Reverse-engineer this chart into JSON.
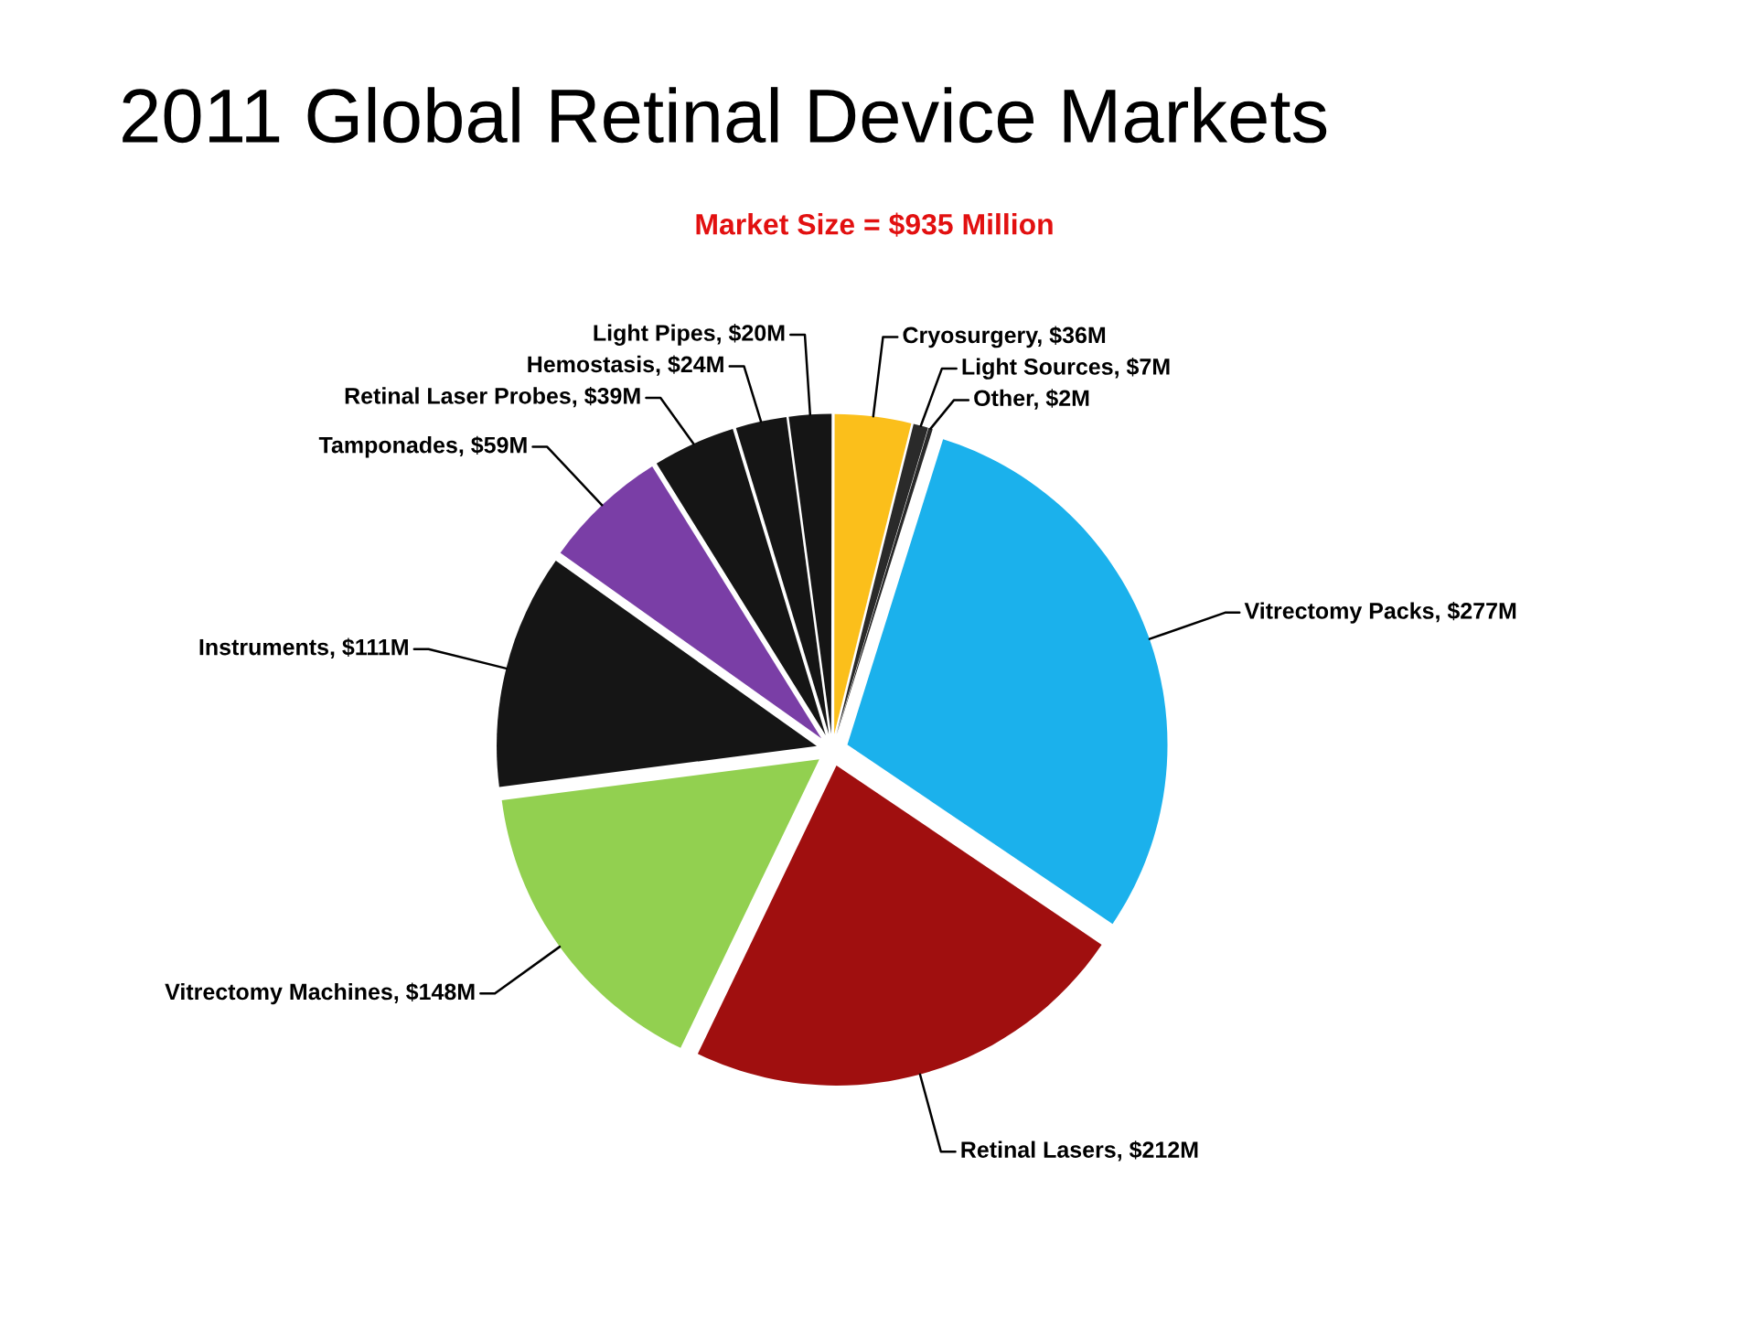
{
  "chart_data": {
    "type": "pie",
    "title": "2011 Global Retinal Device Markets",
    "subtitle": "Market Size = $935 Million",
    "categories": [
      "Vitrectomy Packs",
      "Retinal Lasers",
      "Vitrectomy Machines",
      "Instruments",
      "Tamponades",
      "Retinal Laser Probes",
      "Hemostasis",
      "Light Pipes",
      "Cryosurgery",
      "Light Sources",
      "Other"
    ],
    "values": [
      277,
      212,
      148,
      111,
      59,
      39,
      24,
      20,
      36,
      7,
      2
    ],
    "colors": [
      "#1bb1ec",
      "#a00f0f",
      "#92d050",
      "#151515",
      "#7a3ea6",
      "#151515",
      "#151515",
      "#151515",
      "#fbbf1b",
      "#2a2a2a",
      "#2a2a2a"
    ],
    "value_labels": [
      "$277M",
      "$212M",
      "$148M",
      "$111M",
      "$59M",
      "$39M",
      "$24M",
      "$20M",
      "$36M",
      "$7M",
      "$2M"
    ]
  }
}
